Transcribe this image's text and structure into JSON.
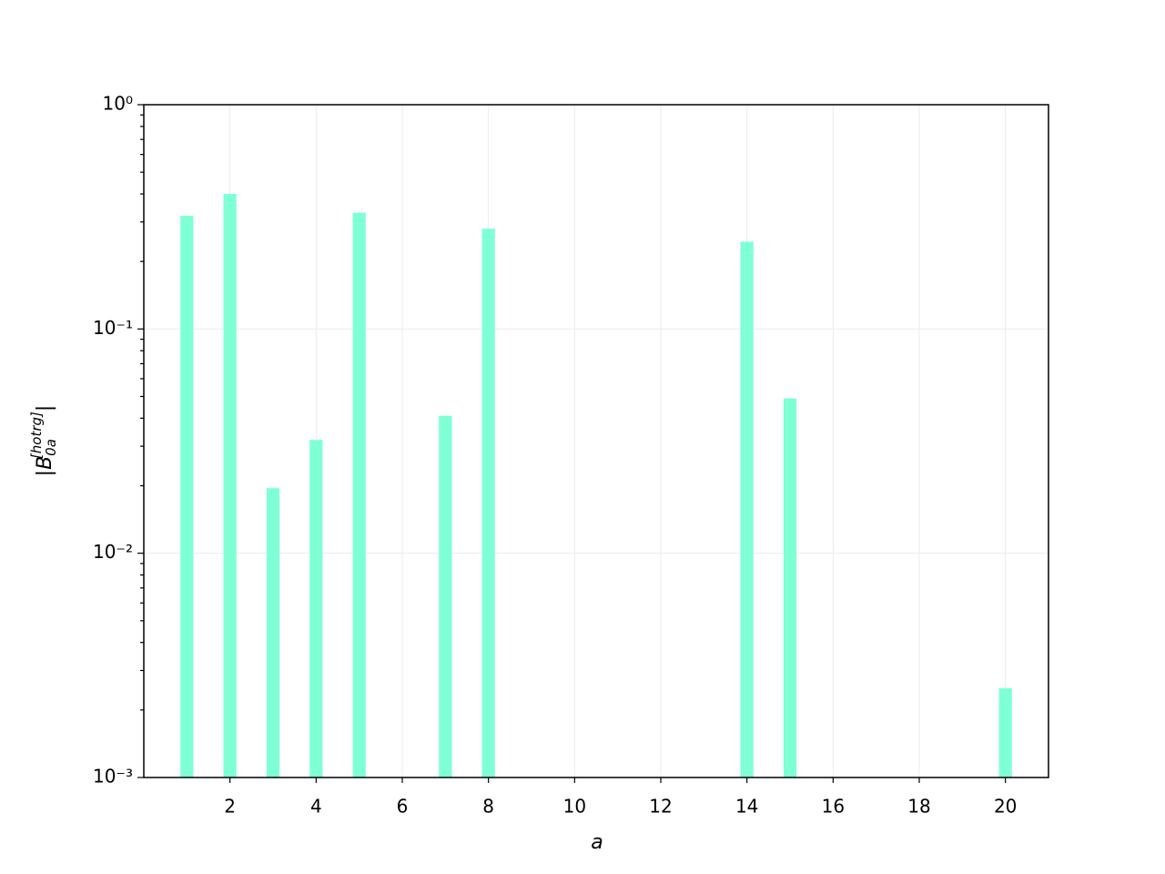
{
  "chart_data": {
    "type": "bar",
    "xlabel": "a",
    "ylabel": {
      "open": "|B",
      "sub": "0a",
      "sup": "[hotrg]",
      "close": "|"
    },
    "x": [
      1,
      2,
      3,
      4,
      5,
      7,
      8,
      14,
      15,
      20
    ],
    "values": [
      0.32,
      0.4,
      0.0195,
      0.032,
      0.33,
      0.041,
      0.28,
      0.245,
      0.049,
      0.0025
    ],
    "color": "#7fffd4",
    "bar_width": 0.3,
    "xlim": [
      0,
      21
    ],
    "xticks": [
      2,
      4,
      6,
      8,
      10,
      12,
      14,
      16,
      18,
      20
    ],
    "ylim": [
      0.001,
      1
    ],
    "yscale": "log",
    "yticks": [
      {
        "value": 0.001,
        "label": "10⁻³"
      },
      {
        "value": 0.01,
        "label": "10⁻²"
      },
      {
        "value": 0.1,
        "label": "10⁻¹"
      },
      {
        "value": 1,
        "label": "10⁰"
      }
    ],
    "yminor_ticks": [
      0.002,
      0.003,
      0.004,
      0.005,
      0.006,
      0.007,
      0.008,
      0.009,
      0.02,
      0.03,
      0.04,
      0.05,
      0.06,
      0.07,
      0.08,
      0.09,
      0.2,
      0.3,
      0.4,
      0.5,
      0.6,
      0.7,
      0.8,
      0.9
    ],
    "grid": true
  }
}
